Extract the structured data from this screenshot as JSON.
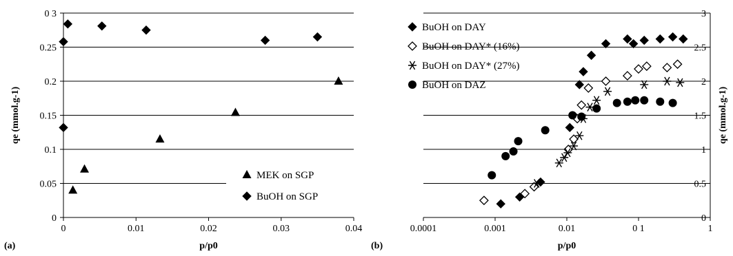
{
  "chart_data": [
    {
      "panel_label": "(a)",
      "type": "scatter",
      "title": "",
      "xlabel": "p/p0",
      "ylabel": "qe (mmol.g-1)",
      "xlim": [
        0,
        0.04
      ],
      "ylim": [
        0,
        0.3
      ],
      "x_ticks": [
        {
          "v": 0,
          "label": "0"
        },
        {
          "v": 0.01,
          "label": "0.01"
        },
        {
          "v": 0.02,
          "label": "0.02"
        },
        {
          "v": 0.03,
          "label": "0.03"
        },
        {
          "v": 0.04,
          "label": "0.04"
        }
      ],
      "y_ticks": [
        {
          "v": 0,
          "label": "0"
        },
        {
          "v": 0.05,
          "label": "0.05"
        },
        {
          "v": 0.1,
          "label": "0.1"
        },
        {
          "v": 0.15,
          "label": "0.15"
        },
        {
          "v": 0.2,
          "label": "0.2"
        },
        {
          "v": 0.25,
          "label": "0.25"
        },
        {
          "v": 0.3,
          "label": "0 3"
        }
      ],
      "grid": "horizontal",
      "legend_position": "bottom-right",
      "series": [
        {
          "name": "MEK on SGP",
          "marker": "triangle",
          "points": [
            [
              0.0013,
              0.04
            ],
            [
              0.0029,
              0.071
            ],
            [
              0.0133,
              0.115
            ],
            [
              0.0237,
              0.154
            ],
            [
              0.0379,
              0.2
            ]
          ]
        },
        {
          "name": "BuOH  on SGP",
          "marker": "diamond",
          "points": [
            [
              0.0,
              0.132
            ],
            [
              0.0,
              0.258
            ],
            [
              0.0006,
              0.284
            ],
            [
              0.0053,
              0.281
            ],
            [
              0.0114,
              0.275
            ],
            [
              0.0278,
              0.26
            ],
            [
              0.035,
              0.265
            ]
          ]
        }
      ]
    },
    {
      "panel_label": "(b)",
      "type": "scatter",
      "title": "",
      "xlabel": "p/p0",
      "ylabel": "qe (mmol.g-1)",
      "xscale": "log",
      "xlim": [
        0.0001,
        1
      ],
      "ylim": [
        0,
        3
      ],
      "x_ticks": [
        {
          "v": 0.0001,
          "label": "0.0001"
        },
        {
          "v": 0.001,
          "label": "0.001"
        },
        {
          "v": 0.01,
          "label": "0.01"
        },
        {
          "v": 0.1,
          "label": "0 1"
        },
        {
          "v": 1,
          "label": "1"
        }
      ],
      "y_ticks": [
        {
          "v": 0,
          "label": "0"
        },
        {
          "v": 0.5,
          "label": "0.5"
        },
        {
          "v": 1,
          "label": "1"
        },
        {
          "v": 1.5,
          "label": "1.5"
        },
        {
          "v": 2,
          "label": "2"
        },
        {
          "v": 2.5,
          "label": "2.5"
        },
        {
          "v": 3,
          "label": "3"
        }
      ],
      "y_axis_side": "right",
      "grid": "horizontal",
      "legend_position": "top-left",
      "series": [
        {
          "name": "BuOH on DAY",
          "marker": "diamond",
          "points": [
            [
              0.0012,
              0.2
            ],
            [
              0.0022,
              0.3
            ],
            [
              0.0043,
              0.52
            ],
            [
              0.011,
              1.32
            ],
            [
              0.013,
              1.48
            ],
            [
              0.015,
              1.95
            ],
            [
              0.017,
              2.14
            ],
            [
              0.022,
              2.38
            ],
            [
              0.035,
              2.55
            ],
            [
              0.07,
              2.62
            ],
            [
              0.085,
              2.55
            ],
            [
              0.12,
              2.6
            ],
            [
              0.2,
              2.62
            ],
            [
              0.3,
              2.65
            ],
            [
              0.42,
              2.62
            ]
          ]
        },
        {
          "name": "BuOH on DAY* (16%)",
          "marker": "open-diamond",
          "points": [
            [
              0.0007,
              0.25
            ],
            [
              0.0026,
              0.35
            ],
            [
              0.0035,
              0.45
            ],
            [
              0.0105,
              1.0
            ],
            [
              0.0125,
              1.15
            ],
            [
              0.014,
              1.45
            ],
            [
              0.016,
              1.65
            ],
            [
              0.02,
              1.9
            ],
            [
              0.035,
              2.0
            ],
            [
              0.07,
              2.08
            ],
            [
              0.1,
              2.18
            ],
            [
              0.13,
              2.22
            ],
            [
              0.25,
              2.2
            ],
            [
              0.35,
              2.25
            ]
          ]
        },
        {
          "name": "BuOH on DAY* (27%)",
          "marker": "star",
          "points": [
            [
              0.0038,
              0.5
            ],
            [
              0.0078,
              0.8
            ],
            [
              0.0092,
              0.88
            ],
            [
              0.0103,
              0.95
            ],
            [
              0.0125,
              1.05
            ],
            [
              0.015,
              1.2
            ],
            [
              0.017,
              1.45
            ],
            [
              0.021,
              1.62
            ],
            [
              0.026,
              1.72
            ],
            [
              0.037,
              1.85
            ],
            [
              0.12,
              1.95
            ],
            [
              0.25,
              2.0
            ],
            [
              0.38,
              1.98
            ]
          ]
        },
        {
          "name": "BuOH on DAZ",
          "marker": "circle",
          "points": [
            [
              0.0009,
              0.62
            ],
            [
              0.0014,
              0.9
            ],
            [
              0.0018,
              0.97
            ],
            [
              0.0021,
              1.12
            ],
            [
              0.005,
              1.28
            ],
            [
              0.012,
              1.5
            ],
            [
              0.016,
              1.48
            ],
            [
              0.026,
              1.6
            ],
            [
              0.05,
              1.68
            ],
            [
              0.07,
              1.7
            ],
            [
              0.09,
              1.72
            ],
            [
              0.12,
              1.72
            ],
            [
              0.2,
              1.7
            ],
            [
              0.3,
              1.68
            ]
          ]
        }
      ]
    }
  ]
}
